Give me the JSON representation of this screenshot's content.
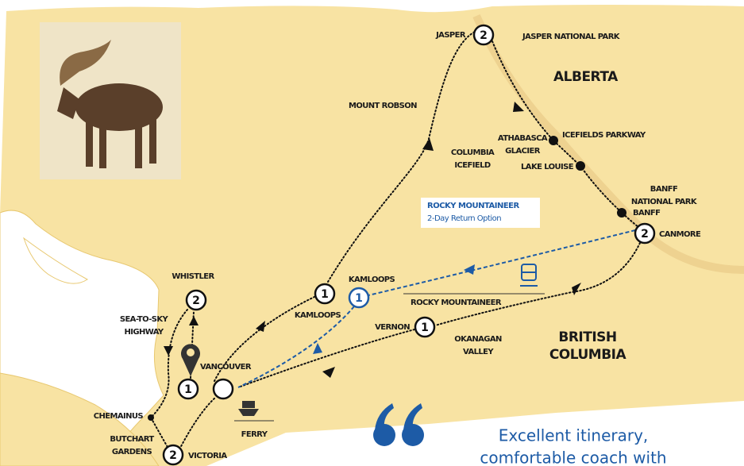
{
  "map": {
    "labels": [
      {
        "lines": [
          "JASPER"
        ]
      },
      {
        "lines": [
          "JASPER NATIONAL PARK"
        ]
      },
      {
        "lines": [
          "ALBERTA"
        ]
      },
      {
        "lines": [
          "MOUNT ROBSON"
        ]
      },
      {
        "lines": [
          "COLUMBIA",
          "ICEFIELD"
        ]
      },
      {
        "lines": [
          "ATHABASCA",
          "GLACIER"
        ]
      },
      {
        "lines": [
          "ICEFIELDS PARKWAY"
        ]
      },
      {
        "lines": [
          "LAKE LOUISE"
        ]
      },
      {
        "lines": [
          "BANFF",
          "NATIONAL PARK"
        ]
      },
      {
        "lines": [
          "BANFF"
        ]
      },
      {
        "lines": [
          "CANMORE"
        ]
      },
      {
        "lines": [
          "KAMLOOPS"
        ]
      },
      {
        "lines": [
          "KAMLOOPS"
        ]
      },
      {
        "lines": [
          "ROCKY MOUNTAINEER"
        ]
      },
      {
        "lines": [
          "VERNON"
        ]
      },
      {
        "lines": [
          "OKANAGAN",
          "VALLEY"
        ]
      },
      {
        "lines": [
          "BRITISH",
          "COLUMBIA"
        ]
      },
      {
        "lines": [
          "WHISTLER"
        ]
      },
      {
        "lines": [
          "SEA-TO-SKY",
          "HIGHWAY"
        ]
      },
      {
        "lines": [
          "VANCOUVER"
        ]
      },
      {
        "lines": [
          "CHEMAINUS"
        ]
      },
      {
        "lines": [
          "BUTCHART",
          "GARDENS"
        ]
      },
      {
        "lines": [
          "VICTORIA"
        ]
      },
      {
        "lines": [
          "FERRY"
        ]
      }
    ],
    "stops": [
      2,
      2,
      1,
      1,
      1,
      2,
      1,
      2
    ],
    "rocky_option": [
      "ROCKY MOUNTAINEER",
      "2-Day Return Option"
    ],
    "quote": [
      "Excellent itinerary,",
      "comfortable coach with"
    ]
  }
}
